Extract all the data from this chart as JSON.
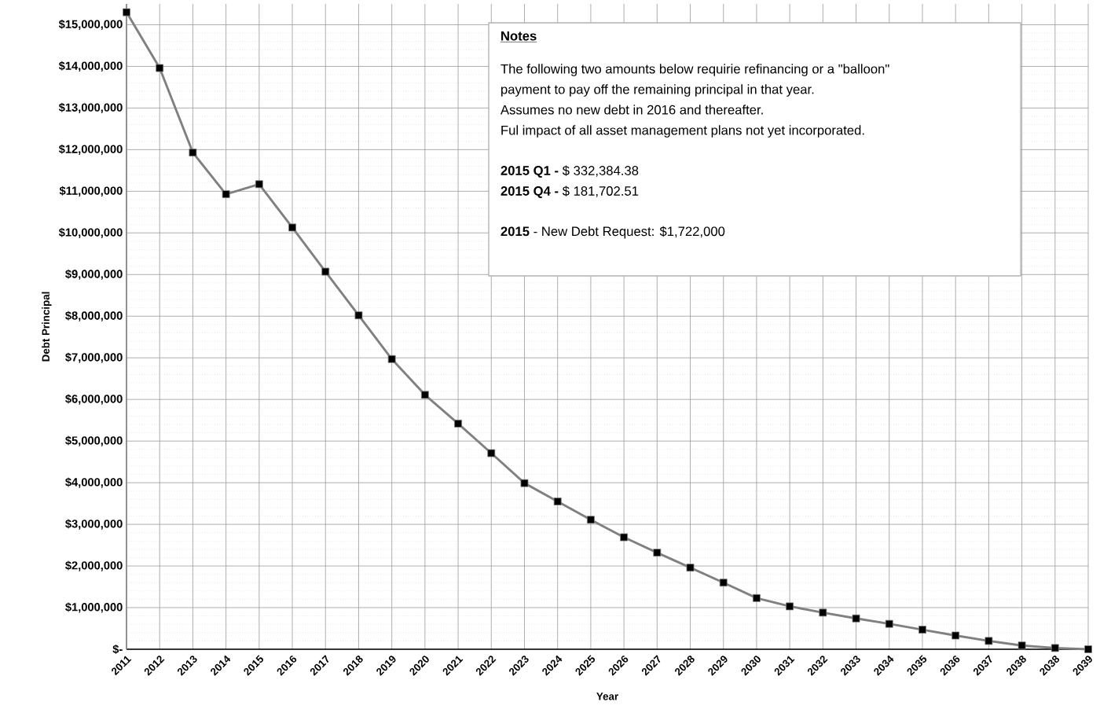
{
  "chart_data": {
    "type": "line",
    "xlabel": "Year",
    "ylabel": "Debt Principal",
    "categories": [
      "2011",
      "2012",
      "2013",
      "2014",
      "2015",
      "2016",
      "2017",
      "2018",
      "2019",
      "2020",
      "2021",
      "2022",
      "2023",
      "2024",
      "2025",
      "2026",
      "2027",
      "2028",
      "2029",
      "2030",
      "2031",
      "2032",
      "2033",
      "2034",
      "2035",
      "2036",
      "2037",
      "2038",
      "2038",
      "2039"
    ],
    "series": [
      {
        "color": "#808080",
        "values": [
          15300000,
          13960000,
          11930000,
          10930000,
          11170000,
          10130000,
          9070000,
          8020000,
          6970000,
          6110000,
          5420000,
          4710000,
          3990000,
          3550000,
          3110000,
          2690000,
          2320000,
          1960000,
          1600000,
          1230000,
          1030000,
          880000,
          740000,
          610000,
          470000,
          330000,
          200000,
          90000,
          30000,
          0
        ]
      }
    ],
    "ylim": [
      0,
      15500000
    ],
    "yticks": [
      {
        "value": 0,
        "label": "$-"
      },
      {
        "value": 1000000,
        "label": "$1,000,000"
      },
      {
        "value": 2000000,
        "label": "$2,000,000"
      },
      {
        "value": 3000000,
        "label": "$3,000,000"
      },
      {
        "value": 4000000,
        "label": "$4,000,000"
      },
      {
        "value": 5000000,
        "label": "$5,000,000"
      },
      {
        "value": 6000000,
        "label": "$6,000,000"
      },
      {
        "value": 7000000,
        "label": "$7,000,000"
      },
      {
        "value": 8000000,
        "label": "$8,000,000"
      },
      {
        "value": 9000000,
        "label": "$9,000,000"
      },
      {
        "value": 10000000,
        "label": "$10,000,000"
      },
      {
        "value": 11000000,
        "label": "$11,000,000"
      },
      {
        "value": 12000000,
        "label": "$12,000,000"
      },
      {
        "value": 13000000,
        "label": "$13,000,000"
      },
      {
        "value": 14000000,
        "label": "$14,000,000"
      },
      {
        "value": 15000000,
        "label": "$15,000,000"
      }
    ],
    "grid": true,
    "marker": "square",
    "line_style": "solid",
    "annotations": [
      "Notes",
      "The following two amounts below requirie refinancing  or a \"balloon\"",
      "payment to pay off the remaining principal in that year.",
      "Assumes no new debt in 2016 and thereafter.",
      "Ful impact of all asset management plans not yet incorporated.",
      "**2015  Q1 -** $   332,384.38",
      "**2015  Q4 -** $   181,702.51",
      "**2015** - New Debt Request: $1,722,000"
    ]
  }
}
